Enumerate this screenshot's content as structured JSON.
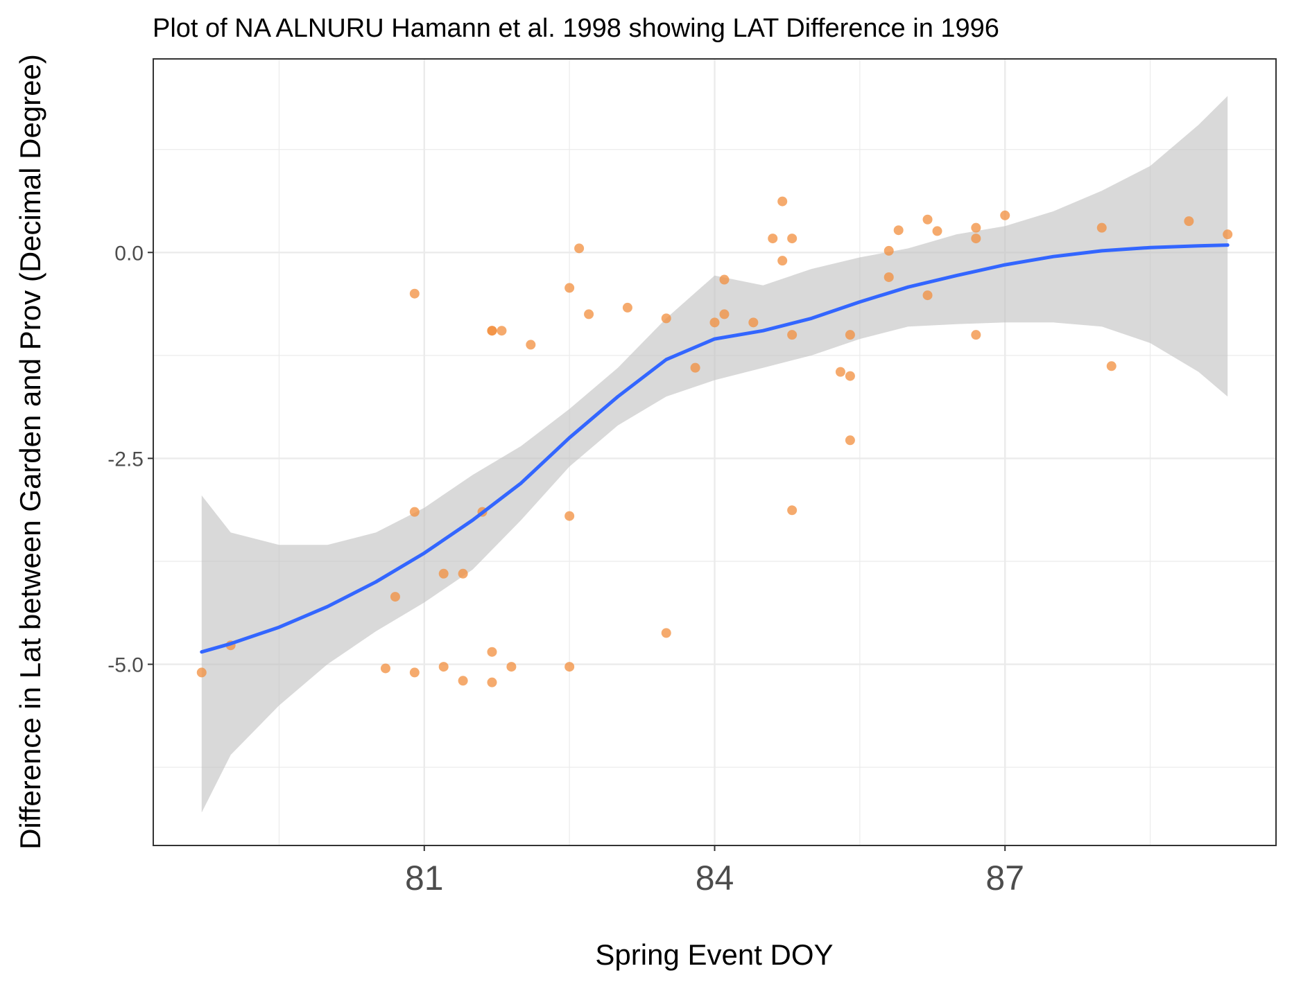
{
  "chart_data": {
    "type": "scatter",
    "title": "Plot of NA ALNURU Hamann et al. 1998 showing LAT Difference in 1996",
    "xlabel": "Spring Event DOY",
    "ylabel": "Difference in Lat between Garden and Prov (Decimal Degree)",
    "xlim": [
      78.2,
      89.8
    ],
    "ylim": [
      -7.2,
      2.35
    ],
    "x_ticks": [
      {
        "value": 81,
        "label": "81"
      },
      {
        "value": 84,
        "label": "84"
      },
      {
        "value": 87,
        "label": "87"
      }
    ],
    "y_ticks": [
      {
        "value": 0,
        "label": "0.0"
      },
      {
        "value": -2.5,
        "label": "-2.5"
      },
      {
        "value": -5,
        "label": "-5.0"
      }
    ],
    "grid": true,
    "legend": "none",
    "colors": {
      "points": "#f28e3c",
      "smooth_line": "#3366ff",
      "confidence_band": "#bfbfbf",
      "grid": "#ebebeb",
      "panel_border": "#333333"
    },
    "series": [
      {
        "type": "scatter",
        "x": [
          78.7,
          79.0,
          80.6,
          80.7,
          80.9,
          80.9,
          80.9,
          81.2,
          81.2,
          81.4,
          81.4,
          81.6,
          81.7,
          81.7,
          81.7,
          81.7,
          81.8,
          81.9,
          82.1,
          82.5,
          82.5,
          82.5,
          82.6,
          82.7,
          83.1,
          83.5,
          83.5,
          83.8,
          84.0,
          84.1,
          84.1,
          84.4,
          84.6,
          84.7,
          84.7,
          84.8,
          84.8,
          84.8,
          85.3,
          85.4,
          85.4,
          85.4,
          85.8,
          85.8,
          85.9,
          86.2,
          86.2,
          86.3,
          86.7,
          86.7,
          86.7,
          87.0,
          88.0,
          88.1,
          88.9,
          89.3
        ],
        "y": [
          -5.1,
          -4.77,
          -5.05,
          -4.18,
          -0.5,
          -5.1,
          -3.15,
          -3.9,
          -5.03,
          -3.9,
          -5.2,
          -3.15,
          -0.95,
          -4.85,
          -5.22,
          -0.95,
          -0.95,
          -5.03,
          -1.12,
          -0.43,
          -3.2,
          -5.03,
          0.05,
          -0.75,
          -0.67,
          -0.8,
          -4.62,
          -1.4,
          -0.85,
          -0.33,
          -0.75,
          -0.85,
          0.17,
          0.62,
          -0.1,
          0.17,
          -1.0,
          -3.13,
          -1.45,
          -1.0,
          -1.5,
          -2.28,
          0.02,
          -0.3,
          0.27,
          0.4,
          -0.52,
          0.26,
          0.3,
          0.17,
          -1.0,
          0.45,
          0.3,
          -1.38,
          0.38,
          0.22
        ]
      },
      {
        "type": "line",
        "name": "",
        "x": [
          78.7,
          79.0,
          79.5,
          80.0,
          80.5,
          81.0,
          81.5,
          82.0,
          82.5,
          83.0,
          83.5,
          84.0,
          84.5,
          85.0,
          85.5,
          86.0,
          86.5,
          87.0,
          87.5,
          88.0,
          88.5,
          89.0,
          89.3
        ],
        "y": [
          -4.85,
          -4.75,
          -4.55,
          -4.3,
          -4.0,
          -3.65,
          -3.25,
          -2.8,
          -2.25,
          -1.75,
          -1.3,
          -1.05,
          -0.95,
          -0.8,
          -0.6,
          -0.42,
          -0.28,
          -0.15,
          -0.05,
          0.02,
          0.06,
          0.08,
          0.09
        ],
        "ci_lower": [
          -6.8,
          -6.1,
          -5.5,
          -5.0,
          -4.6,
          -4.25,
          -3.85,
          -3.25,
          -2.6,
          -2.1,
          -1.75,
          -1.55,
          -1.4,
          -1.25,
          -1.05,
          -0.9,
          -0.87,
          -0.85,
          -0.85,
          -0.9,
          -1.1,
          -1.45,
          -1.75
        ],
        "ci_upper": [
          -2.95,
          -3.4,
          -3.55,
          -3.55,
          -3.4,
          -3.1,
          -2.7,
          -2.35,
          -1.9,
          -1.4,
          -0.8,
          -0.28,
          -0.4,
          -0.2,
          -0.06,
          0.05,
          0.22,
          0.32,
          0.5,
          0.75,
          1.05,
          1.55,
          1.9
        ]
      }
    ]
  }
}
